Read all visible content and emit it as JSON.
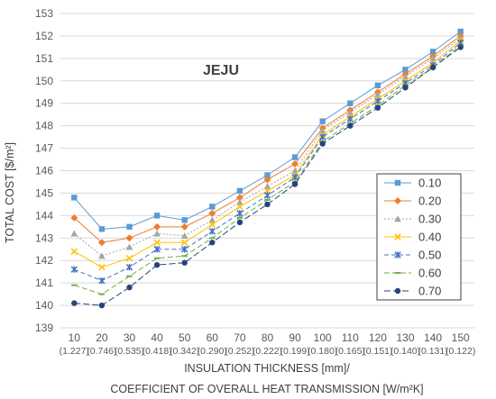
{
  "chart_data": {
    "type": "line",
    "annotation": "JEJU",
    "ylabel": "TOTAL COST [$/m²]",
    "xlabel_line1": "INSULATION THICKNESS [mm]/",
    "xlabel_line2": "COEFFICIENT OF OVERALL HEAT TRANSMISSION [W/m²K]",
    "ylim": [
      139,
      153
    ],
    "yticks": [
      139,
      140,
      141,
      142,
      143,
      144,
      145,
      146,
      147,
      148,
      149,
      150,
      151,
      152,
      153
    ],
    "categories": [
      "10",
      "20",
      "30",
      "40",
      "50",
      "60",
      "70",
      "80",
      "90",
      "100",
      "110",
      "120",
      "130",
      "140",
      "150"
    ],
    "category_sub": [
      "(1.227)",
      "(0.746)",
      "(0.535)",
      "(0.418)",
      "(0.342)",
      "(0.290)",
      "(0.252)",
      "(0.222)",
      "(0.199)",
      "(0.180)",
      "(0.165)",
      "(0.151)",
      "(0.140)",
      "(0.131)",
      "(0.122)"
    ],
    "grid": true,
    "legend_position": "right",
    "series": [
      {
        "name": "0.10",
        "color": "#5b9bd5",
        "marker": "square",
        "dash": "",
        "values": [
          144.8,
          143.4,
          143.5,
          144.0,
          143.8,
          144.4,
          145.1,
          145.8,
          146.6,
          148.2,
          149.0,
          149.8,
          150.5,
          151.3,
          152.2
        ]
      },
      {
        "name": "0.20",
        "color": "#ed7d31",
        "marker": "diamond",
        "dash": "",
        "values": [
          143.9,
          142.8,
          143.0,
          143.5,
          143.5,
          144.1,
          144.8,
          145.6,
          146.3,
          147.9,
          148.7,
          149.5,
          150.3,
          151.1,
          152.0
        ]
      },
      {
        "name": "0.30",
        "color": "#a5a5a5",
        "marker": "triangle",
        "dash": "2,2",
        "values": [
          143.2,
          142.2,
          142.6,
          143.2,
          143.1,
          143.8,
          144.6,
          145.3,
          146.0,
          147.8,
          148.6,
          149.4,
          150.2,
          151.0,
          151.9
        ]
      },
      {
        "name": "0.40",
        "color": "#ffc000",
        "marker": "x",
        "dash": "",
        "values": [
          142.4,
          141.7,
          142.1,
          142.8,
          142.8,
          143.6,
          144.4,
          145.1,
          145.8,
          147.6,
          148.4,
          149.2,
          150.0,
          150.8,
          151.8
        ]
      },
      {
        "name": "0.50",
        "color": "#4472c4",
        "marker": "star",
        "dash": "5,3",
        "values": [
          141.6,
          141.1,
          141.7,
          142.5,
          142.5,
          143.3,
          144.1,
          144.9,
          145.7,
          147.5,
          148.3,
          149.1,
          149.9,
          150.7,
          151.7
        ]
      },
      {
        "name": "0.60",
        "color": "#70ad47",
        "marker": "dash",
        "dash": "6,3",
        "values": [
          140.9,
          140.5,
          141.3,
          142.1,
          142.2,
          143.0,
          143.9,
          144.7,
          145.5,
          147.3,
          148.1,
          148.9,
          149.8,
          150.6,
          151.6
        ]
      },
      {
        "name": "0.70",
        "color": "#264478",
        "marker": "circle",
        "dash": "7,3",
        "values": [
          140.1,
          140.0,
          140.8,
          141.8,
          141.9,
          142.8,
          143.7,
          144.5,
          145.4,
          147.2,
          148.0,
          148.8,
          149.7,
          150.6,
          151.5
        ]
      }
    ]
  }
}
